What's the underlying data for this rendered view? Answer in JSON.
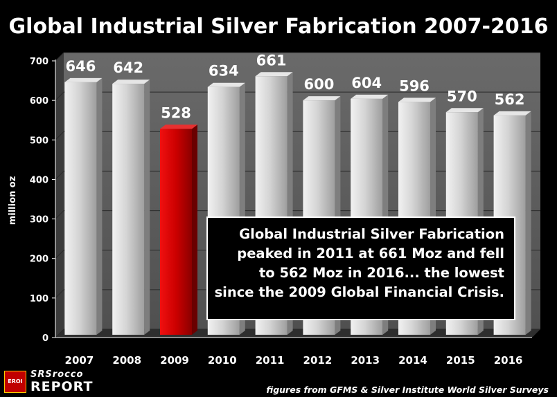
{
  "chart_data": {
    "type": "bar",
    "title": "Global Industrial Silver Fabrication 2007-2016",
    "ylabel": "million oz",
    "xlabel": "",
    "ylim": [
      0,
      700
    ],
    "yticks": [
      0,
      100,
      200,
      300,
      400,
      500,
      600,
      700
    ],
    "categories": [
      "2007",
      "2008",
      "2009",
      "2010",
      "2011",
      "2012",
      "2013",
      "2014",
      "2015",
      "2016"
    ],
    "values": [
      646,
      642,
      528,
      634,
      661,
      600,
      604,
      596,
      570,
      562
    ],
    "highlight_category": "2009",
    "colors": {
      "bar": "#c8c8c8",
      "highlight": "#cc0000",
      "background": "#000000",
      "plot_wall": "#5e5e5e"
    },
    "grid": true
  },
  "annotation": {
    "lines": [
      "Global Industrial Silver Fabrication",
      "peaked in 2011 at 661 Moz and fell",
      "to 562 Moz in 2016... the lowest",
      "since the 2009 Global Financial Crisis."
    ]
  },
  "source": "figures from GFMS & Silver Institute World Silver Surveys",
  "logo": {
    "badge": "EROI",
    "line1": "SRSrocco",
    "line2": "REPORT"
  }
}
